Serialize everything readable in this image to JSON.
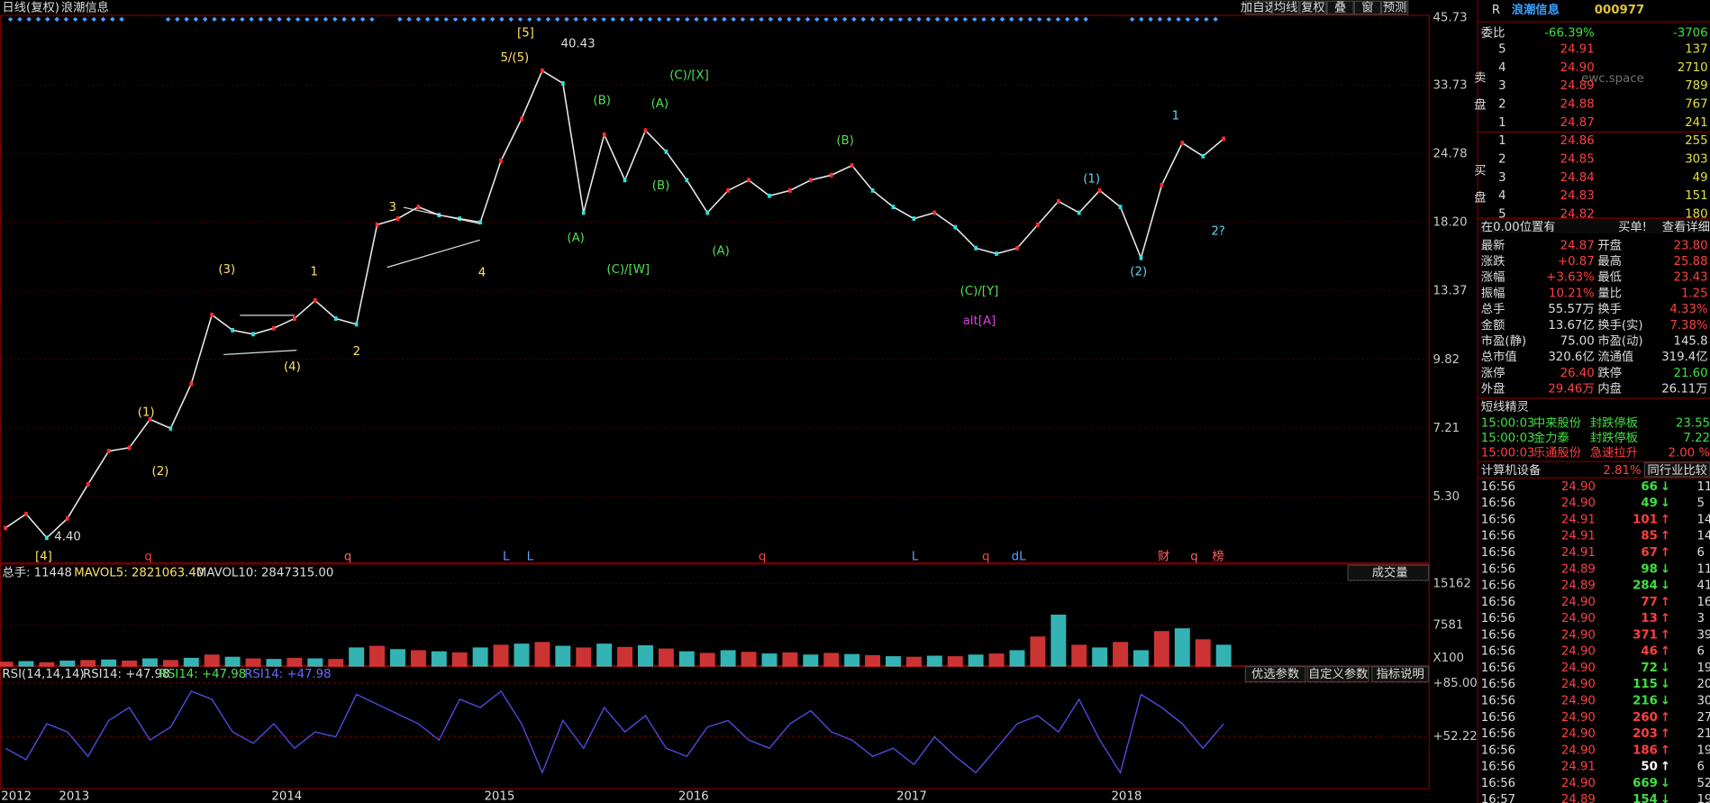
{
  "toolbar": {
    "title": "日线(复权)",
    "stock": "浪潮信息",
    "buttons": [
      "加自选",
      "均线",
      "复权",
      "叠",
      "窗",
      "预测"
    ]
  },
  "price_chart": {
    "log_scale": true,
    "ylim": [
      3.93,
      46.18
    ],
    "yticks": [
      45.73,
      33.73,
      24.78,
      {
        "value": 18.2,
        "label": "18.20"
      },
      13.37,
      9.82,
      7.21,
      {
        "value": 5.3,
        "label": "5.30"
      }
    ],
    "color": "#e8e8e8",
    "values": [
      4.6,
      4.9,
      4.4,
      4.8,
      5.6,
      6.5,
      6.6,
      7.5,
      7.2,
      8.8,
      12.0,
      11.2,
      11.0,
      11.3,
      11.8,
      12.8,
      11.8,
      11.5,
      18.0,
      18.5,
      19.5,
      18.8,
      18.5,
      18.2,
      24.0,
      29.0,
      36.0,
      34.0,
      19.0,
      27.0,
      22.0,
      27.5,
      25.0,
      22.0,
      19.0,
      21.0,
      22.0,
      20.5,
      21.0,
      22.0,
      22.5,
      23.5,
      21.0,
      19.5,
      18.5,
      19.0,
      17.8,
      16.2,
      15.8,
      16.2,
      18.0,
      20.0,
      19.0,
      21.0,
      19.5,
      15.5,
      21.5,
      26.0,
      24.5,
      26.5
    ],
    "annotations": [
      "[4]",
      "4.40",
      "(1)",
      "(2)",
      "(3)",
      "(4)",
      "1",
      "2",
      "3",
      "4",
      "[5]",
      "5/(5)",
      "40.43",
      "(B)",
      "(A)",
      "(C)/[W]",
      "(A)",
      "(C)/[X]",
      "(B)",
      "(A)",
      "(B)",
      "(C)/[Y]",
      "(1)",
      "(2)",
      "1",
      "2?",
      "alt[A]"
    ],
    "events": [
      "q",
      "q",
      "L",
      "L",
      "q",
      "L",
      "q",
      "dL",
      "财",
      "q",
      "榜"
    ]
  },
  "volume_chart": {
    "header": [
      "总手: 11448",
      "MAVOL5: 2821063.40",
      "MAVOL10: 2847315.00"
    ],
    "selector": "成交量",
    "ylim": [
      0,
      18550
    ],
    "yticks": [
      15162,
      7581
    ],
    "unit": "X100",
    "colors": [
      "#ff4040",
      "#40e0e0"
    ],
    "values": [
      900,
      1000,
      800,
      1100,
      1200,
      1300,
      1100,
      1500,
      1200,
      1600,
      2200,
      1800,
      1500,
      1400,
      1600,
      1500,
      1400,
      3500,
      3800,
      3200,
      3000,
      2800,
      2600,
      3500,
      4000,
      4200,
      4500,
      3800,
      3500,
      4200,
      3600,
      3900,
      3300,
      2800,
      2500,
      3000,
      2700,
      2400,
      2600,
      2200,
      2500,
      2300,
      2100,
      1900,
      1800,
      2000,
      1900,
      2200,
      2400,
      3000,
      5500,
      9500,
      4000,
      3500,
      4500,
      3000,
      6500,
      7000,
      5000,
      4000
    ]
  },
  "rsi_chart": {
    "header": [
      "RSI(14,14,14)",
      "RSI14: +47.98",
      "RSI14: +47.98",
      "RSI14: +47.98"
    ],
    "buttons": [
      "优选参数",
      "自定义参数",
      "指标说明"
    ],
    "ylim": [
      20.8,
      94.4
    ],
    "yticks": [
      {
        "value": 85,
        "label": "+85.00"
      },
      {
        "value": 52.22,
        "label": "+52.22"
      }
    ],
    "color": "#4a4ad8",
    "values": [
      45,
      38,
      60,
      55,
      40,
      62,
      70,
      50,
      58,
      80,
      75,
      55,
      48,
      60,
      45,
      55,
      52,
      78,
      72,
      66,
      60,
      50,
      75,
      70,
      80,
      60,
      30,
      62,
      45,
      70,
      55,
      65,
      45,
      40,
      58,
      62,
      50,
      45,
      60,
      68,
      55,
      50,
      40,
      45,
      35,
      52,
      40,
      30,
      45,
      60,
      65,
      55,
      75,
      50,
      30,
      78,
      70,
      60,
      45,
      60
    ]
  },
  "x_labels": [
    "2012",
    "2013",
    "2014",
    "2015",
    "2016",
    "2017",
    "2018"
  ],
  "quote": {
    "flag": "R",
    "name": "浪潮信息",
    "code": "000977",
    "watermark": "ewc.space",
    "ratio": [
      "委比",
      "-66.39%",
      "-3706"
    ],
    "sell_label": "卖盘",
    "buy_label": "买盘",
    "sell": [
      [
        "5",
        "24.91",
        "137"
      ],
      [
        "4",
        "24.90",
        "2710"
      ],
      [
        "3",
        "24.89",
        "789"
      ],
      [
        "2",
        "24.88",
        "767"
      ],
      [
        "1",
        "24.87",
        "241"
      ]
    ],
    "buy": [
      [
        "1",
        "24.86",
        "255"
      ],
      [
        "2",
        "24.85",
        "303"
      ],
      [
        "3",
        "24.84",
        "49"
      ],
      [
        "4",
        "24.83",
        "151"
      ],
      [
        "5",
        "24.82",
        "180"
      ]
    ],
    "bar": [
      "在0.00位置有",
      "买单!",
      "查看详细"
    ],
    "stats": [
      [
        "最新",
        "24.87",
        "开盘",
        "23.80"
      ],
      [
        "涨跌",
        "+0.87",
        "最高",
        "25.88"
      ],
      [
        "涨幅",
        "+3.63%",
        "最低",
        "23.43"
      ],
      [
        "振幅",
        "10.21%",
        "量比",
        "1.25"
      ],
      [
        "总手",
        "55.57万",
        "换手",
        "4.33%"
      ],
      [
        "金额",
        "13.67亿",
        "换手(实)",
        "7.38%"
      ],
      [
        "市盈(静)",
        "75.00",
        "市盈(动)",
        "145.8"
      ],
      [
        "总市值",
        "320.6亿",
        "流通值",
        "319.4亿"
      ],
      [
        "涨停",
        "26.40",
        "跌停",
        "21.60"
      ],
      [
        "外盘",
        "29.46万",
        "内盘",
        "26.11万"
      ]
    ],
    "sprite_title": "短线精灵",
    "sprite": [
      [
        "15:00:03",
        "中来股份",
        "封跌停板",
        "23.55"
      ],
      [
        "15:00:03",
        "金力泰",
        "封跌停板",
        "7.22"
      ],
      [
        "15:00:03",
        "乐通股份",
        "急速拉升",
        "2.00 %"
      ]
    ],
    "industry": [
      "计算机设备",
      "2.81%",
      "同行业比较"
    ],
    "ticks": [
      [
        "16:56",
        "24.90",
        "66",
        "↓",
        "11"
      ],
      [
        "16:56",
        "24.90",
        "49",
        "↓",
        "5"
      ],
      [
        "16:56",
        "24.91",
        "101",
        "↑",
        "14"
      ],
      [
        "16:56",
        "24.91",
        "85",
        "↑",
        "14"
      ],
      [
        "16:56",
        "24.91",
        "67",
        "↑",
        "6"
      ],
      [
        "16:56",
        "24.89",
        "98",
        "↓",
        "11"
      ],
      [
        "16:56",
        "24.89",
        "284",
        "↓",
        "41"
      ],
      [
        "16:56",
        "24.90",
        "77",
        "↑",
        "16"
      ],
      [
        "16:56",
        "24.90",
        "13",
        "↑",
        "3"
      ],
      [
        "16:56",
        "24.90",
        "371",
        "↑",
        "39"
      ],
      [
        "16:56",
        "24.90",
        "46",
        "↑",
        "6"
      ],
      [
        "16:56",
        "24.90",
        "72",
        "↓",
        "19"
      ],
      [
        "16:56",
        "24.90",
        "115",
        "↓",
        "20"
      ],
      [
        "16:56",
        "24.90",
        "216",
        "↓",
        "30"
      ],
      [
        "16:56",
        "24.90",
        "260",
        "↑",
        "27"
      ],
      [
        "16:56",
        "24.90",
        "203",
        "↑",
        "21"
      ],
      [
        "16:56",
        "24.90",
        "186",
        "↑",
        "19"
      ],
      [
        "16:56",
        "24.91",
        "50",
        "↑",
        "6"
      ],
      [
        "16:56",
        "24.90",
        "669",
        "↓",
        "52"
      ],
      [
        "16:57",
        "24.89",
        "154",
        "↓",
        "19"
      ]
    ]
  }
}
